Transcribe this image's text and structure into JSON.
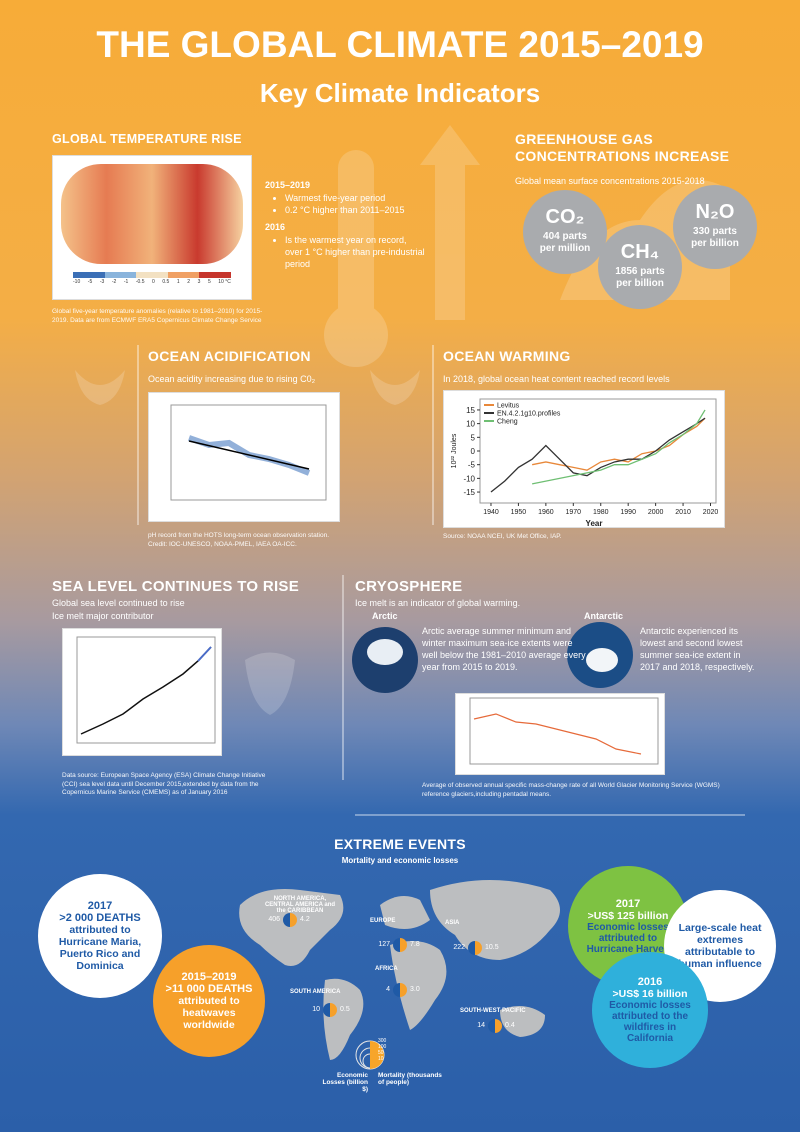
{
  "header": {
    "title": "THE GLOBAL CLIMATE 2015–2019",
    "subtitle": "Key Climate Indicators"
  },
  "temperature": {
    "heading": "GLOBAL TEMPERATURE RISE",
    "scale": [
      "-10",
      "-5",
      "-3",
      "-2",
      "-1",
      "-0.5",
      "0",
      "0.5",
      "1",
      "2",
      "3",
      "5",
      "10 °C"
    ],
    "notes": [
      {
        "period": "2015–2019",
        "items": [
          "Warmest five-year period",
          "0.2 °C higher than 2011–2015"
        ]
      },
      {
        "period": "2016",
        "items": [
          "Is the warmest year on record, over 1 °C higher than pre-industrial period"
        ]
      }
    ],
    "caption": "Global five-year temperature anomalies (relative to 1981–2010) for 2015-2019. Data are from ECMWF ERA5 Copernicus Climate Change Service"
  },
  "ghg": {
    "heading": "GREENHOUSE GAS CONCENTRATIONS INCREASE",
    "subtitle": "Global mean surface concentrations 2015-2018",
    "gases": [
      {
        "formula": "CO₂",
        "amount": "404 parts per million"
      },
      {
        "formula": "CH₄",
        "amount": "1856 parts per billion"
      },
      {
        "formula": "N₂O",
        "amount": "330 parts per billion"
      }
    ]
  },
  "acidification": {
    "heading": "OCEAN ACIDIFICATION",
    "subtitle": "Ocean acidity increasing due to rising C0₂",
    "caption": "pH record from the HOTS long-term ocean observation station. Credit: IOC-UNESCO, NOAA-PMEL, IAEA OA-ICC."
  },
  "warming": {
    "heading": "OCEAN WARMING",
    "subtitle": "In 2018, global ocean heat content reached record levels",
    "chart": {
      "type": "line",
      "x_label": "Year",
      "y_label": "10²² Joules",
      "xlim": [
        1936,
        2022
      ],
      "ylim": [
        -19,
        19
      ],
      "xticks": [
        1940,
        1950,
        1960,
        1970,
        1980,
        1990,
        2000,
        2010,
        2020
      ],
      "yticks": [
        15,
        10,
        5,
        0,
        -5,
        -10,
        -15
      ],
      "x": [
        1940,
        1945,
        1950,
        1955,
        1960,
        1965,
        1970,
        1975,
        1980,
        1985,
        1990,
        1995,
        2000,
        2005,
        2010,
        2015,
        2018
      ],
      "series": [
        {
          "name": "Levitus",
          "color": "#e8883a",
          "values": [
            null,
            null,
            null,
            -5,
            -4,
            -5,
            -6,
            -7,
            -4,
            -3,
            -4,
            -1,
            0,
            2,
            6,
            9,
            12
          ]
        },
        {
          "name": "EN.4.2.1g10.profiles",
          "color": "#333333",
          "values": [
            -15,
            -11,
            -6,
            -3,
            2,
            -3,
            -8,
            -9,
            -6,
            -4,
            -3,
            -3,
            0,
            4,
            7,
            10,
            12
          ]
        },
        {
          "name": "Cheng",
          "color": "#6fbf73",
          "values": [
            null,
            null,
            null,
            -12,
            -11,
            -10,
            -9,
            -8,
            -7,
            -5,
            -5,
            -3,
            -1,
            3,
            6,
            10,
            15
          ]
        }
      ]
    },
    "caption": "Source: NOAA NCEI, UK Met Office, IAP."
  },
  "sea_level": {
    "heading": "SEA LEVEL CONTINUES TO RISE",
    "lines": [
      "Global sea level continued to rise",
      "Ice melt major contributor"
    ],
    "caption": "Data source: European Space Agency (ESA) Climate Change Initiative (CCI) sea level data until December 2015,extended by data from the Copernicus Marine Service (CMEMS) as of January 2016"
  },
  "cryosphere": {
    "heading": "CRYOSPHERE",
    "subtitle": "Ice melt is an indicator of global warming.",
    "arctic": {
      "label": "Arctic",
      "text": "Arctic average summer minimum and winter maximum sea-ice extents were well below the 1981–2010 average every year from 2015 to 2019."
    },
    "antarctic": {
      "label": "Antarctic",
      "text": "Antarctic experienced its lowest and second lowest summer sea-ice extent in 2017 and 2018, respectively."
    },
    "caption": "Average of observed annual specific mass-change rate of all World Glacier Monitoring Service (WGMS) reference glaciers,including pentadal means."
  },
  "extreme": {
    "heading": "EXTREME EVENTS",
    "subtitle": "Mortality and economic losses",
    "callouts": [
      {
        "year": "2017",
        "headline": ">2 000 DEATHS",
        "text": "attributed to Hurricane Maria, Puerto Rico and Dominica"
      },
      {
        "year": "2015–2019",
        "headline": ">11 000 DEATHS",
        "text": "attributed to heatwaves worldwide"
      },
      {
        "year": "2017",
        "headline": ">US$ 125 billion",
        "text": "Economic losses attributed to Hurricane Harvey"
      },
      {
        "text": "Large-scale heat extremes attributable to human influence"
      },
      {
        "year": "2016",
        "headline": ">US$ 16 billion",
        "text": "Economic losses attributed to the wildfires in California"
      }
    ],
    "regions": [
      {
        "name": "NORTH AMERICA, CENTRAL AMERICA and the CARIBBEAN",
        "losses": "406",
        "mortality": "4.2"
      },
      {
        "name": "EUROPE",
        "losses": "127",
        "mortality": "7.8"
      },
      {
        "name": "ASIA",
        "losses": "222",
        "mortality": "10.5"
      },
      {
        "name": "AFRICA",
        "losses": "4",
        "mortality": "3.0"
      },
      {
        "name": "SOUTH AMERICA",
        "losses": "10",
        "mortality": "0.5"
      },
      {
        "name": "SOUTH-WEST PACIFIC",
        "losses": "14",
        "mortality": "0.4"
      }
    ],
    "legend": {
      "losses": "Economic Losses (billion $)",
      "mortality": "Mortality (thousands of people)",
      "scale": [
        "300",
        "100",
        "50",
        "10"
      ]
    }
  }
}
